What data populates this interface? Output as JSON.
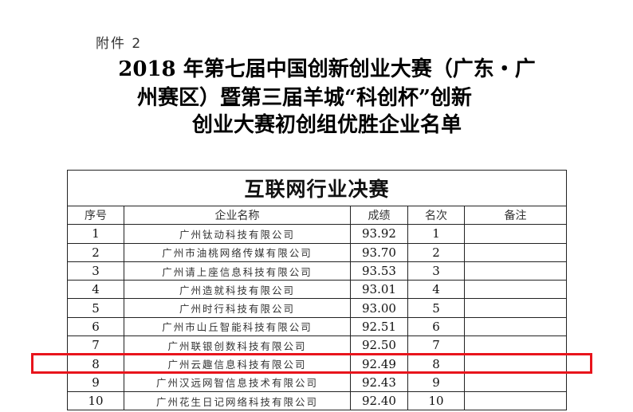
{
  "annex": "附件 2",
  "title_lines": [
    "2018 年第七届中国创新创业大赛（广东・广",
    "州赛区）暨第三届羊城“科创杯”创新",
    "创业大赛初创组优胜企业名单"
  ],
  "table": {
    "caption": "互联网行业决赛",
    "headers": [
      "序号",
      "企业名称",
      "成绩",
      "名次",
      "备注"
    ],
    "rows": [
      {
        "no": "1",
        "name": "广州钛动科技有限公司",
        "score": "93.92",
        "rank": "1",
        "note": ""
      },
      {
        "no": "2",
        "name": "广州市油桃网络传媒有限公司",
        "score": "93.70",
        "rank": "2",
        "note": ""
      },
      {
        "no": "3",
        "name": "广州请上座信息科技有限公司",
        "score": "93.53",
        "rank": "3",
        "note": ""
      },
      {
        "no": "4",
        "name": "广州造就科技有限公司",
        "score": "93.01",
        "rank": "4",
        "note": ""
      },
      {
        "no": "5",
        "name": "广州时行科技有限公司",
        "score": "93.00",
        "rank": "5",
        "note": ""
      },
      {
        "no": "6",
        "name": "广州市山丘智能科技有限公司",
        "score": "92.51",
        "rank": "6",
        "note": ""
      },
      {
        "no": "7",
        "name": "广州联银创数科技有限公司",
        "score": "92.50",
        "rank": "7",
        "note": ""
      },
      {
        "no": "8",
        "name": "广州云趣信息科技有限公司",
        "score": "92.49",
        "rank": "8",
        "note": ""
      },
      {
        "no": "9",
        "name": "广州汉远网智信息技术有限公司",
        "score": "92.43",
        "rank": "9",
        "note": ""
      },
      {
        "no": "10",
        "name": "广州花生日记网络科技有限公司",
        "score": "92.40",
        "rank": "10",
        "note": ""
      }
    ]
  },
  "highlight": {
    "row_no": "8",
    "color": "#e8141c"
  }
}
